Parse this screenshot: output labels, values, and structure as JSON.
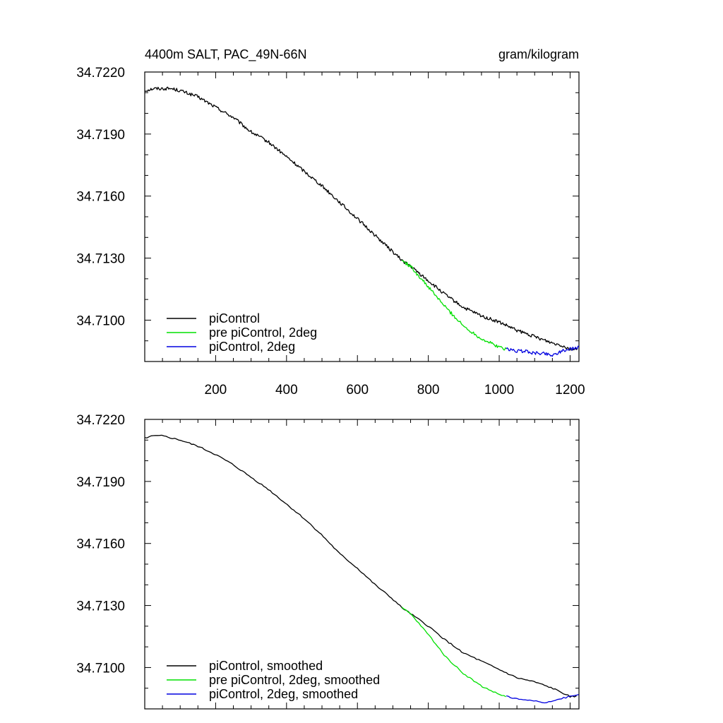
{
  "chart_data": [
    {
      "type": "line",
      "title": "4400m SALT, PAC_49N-66N",
      "units": "gram/kilogram",
      "xlim": [
        0,
        1225
      ],
      "ylim": [
        34.708,
        34.722
      ],
      "x_ticks": [
        200,
        400,
        600,
        800,
        1000,
        1200
      ],
      "x_tick_labels": [
        "200",
        "400",
        "600",
        "800",
        "1000",
        "1200"
      ],
      "y_ticks": [
        34.71,
        34.713,
        34.716,
        34.719,
        34.722
      ],
      "y_tick_labels": [
        "34.7100",
        "34.7130",
        "34.7160",
        "34.7190",
        "34.7220"
      ],
      "grid": false,
      "legend_position": "bottom-left",
      "series": [
        {
          "name": "piControl",
          "color": "#000000",
          "x": [
            0,
            25,
            50,
            75,
            100,
            150,
            200,
            250,
            300,
            350,
            400,
            450,
            500,
            550,
            600,
            650,
            700,
            725,
            750,
            800,
            850,
            900,
            950,
            1000,
            1050,
            1100,
            1150,
            1175,
            1200,
            1220
          ],
          "y": [
            34.7211,
            34.7212,
            34.7212,
            34.7212,
            34.7211,
            34.7208,
            34.7203,
            34.7198,
            34.7191,
            34.7186,
            34.7179,
            34.7172,
            34.7165,
            34.7157,
            34.7149,
            34.7141,
            34.7133,
            34.7129,
            34.7126,
            34.7119,
            34.7112,
            34.7106,
            34.7102,
            34.7099,
            34.7095,
            34.7092,
            34.7089,
            34.7088,
            34.7086,
            34.7086
          ]
        },
        {
          "name": "pre piControl, 2deg",
          "color": "#00e000",
          "x": [
            725,
            750,
            800,
            850,
            900,
            950,
            1000,
            1020
          ],
          "y": [
            34.7129,
            34.7126,
            34.7116,
            34.7106,
            34.7097,
            34.7091,
            34.7087,
            34.7086
          ]
        },
        {
          "name": "piControl, 2deg",
          "color": "#0000e0",
          "x": [
            1020,
            1050,
            1075,
            1100,
            1125,
            1150,
            1175,
            1200,
            1225
          ],
          "y": [
            34.7086,
            34.7085,
            34.7085,
            34.7084,
            34.7084,
            34.7083,
            34.7085,
            34.7086,
            34.7087
          ]
        }
      ]
    },
    {
      "type": "line",
      "xlim": [
        0,
        1225
      ],
      "ylim": [
        34.708,
        34.722
      ],
      "x_ticks": [
        200,
        400,
        600,
        800,
        1000,
        1200
      ],
      "y_ticks": [
        34.71,
        34.713,
        34.716,
        34.719,
        34.722
      ],
      "y_tick_labels": [
        "34.7100",
        "34.7130",
        "34.7160",
        "34.7190",
        "34.7220"
      ],
      "grid": false,
      "legend_position": "bottom-left",
      "series": [
        {
          "name": "piControl, smoothed",
          "color": "#000000",
          "x": [
            0,
            25,
            50,
            75,
            100,
            150,
            200,
            250,
            300,
            350,
            400,
            450,
            500,
            550,
            600,
            650,
            700,
            725,
            750,
            800,
            850,
            900,
            950,
            1000,
            1050,
            1100,
            1150,
            1175,
            1200,
            1220
          ],
          "y": [
            34.7211,
            34.7212,
            34.7212,
            34.7211,
            34.721,
            34.7207,
            34.7203,
            34.7198,
            34.7192,
            34.7186,
            34.7179,
            34.7172,
            34.7164,
            34.7155,
            34.7148,
            34.714,
            34.7133,
            34.7129,
            34.7126,
            34.712,
            34.7113,
            34.7107,
            34.7103,
            34.7099,
            34.7095,
            34.7093,
            34.709,
            34.7088,
            34.7086,
            34.7086
          ]
        },
        {
          "name": "pre piControl, 2deg, smoothed",
          "color": "#00e000",
          "x": [
            725,
            750,
            800,
            850,
            900,
            950,
            1000,
            1020
          ],
          "y": [
            34.7129,
            34.7126,
            34.7116,
            34.7105,
            34.7097,
            34.7091,
            34.7087,
            34.7086
          ]
        },
        {
          "name": "piControl, 2deg, smoothed",
          "color": "#0000e0",
          "x": [
            1020,
            1050,
            1075,
            1100,
            1125,
            1150,
            1175,
            1200,
            1225
          ],
          "y": [
            34.7086,
            34.7085,
            34.7084,
            34.7084,
            34.7083,
            34.7084,
            34.7085,
            34.7086,
            34.7087
          ]
        }
      ]
    }
  ]
}
